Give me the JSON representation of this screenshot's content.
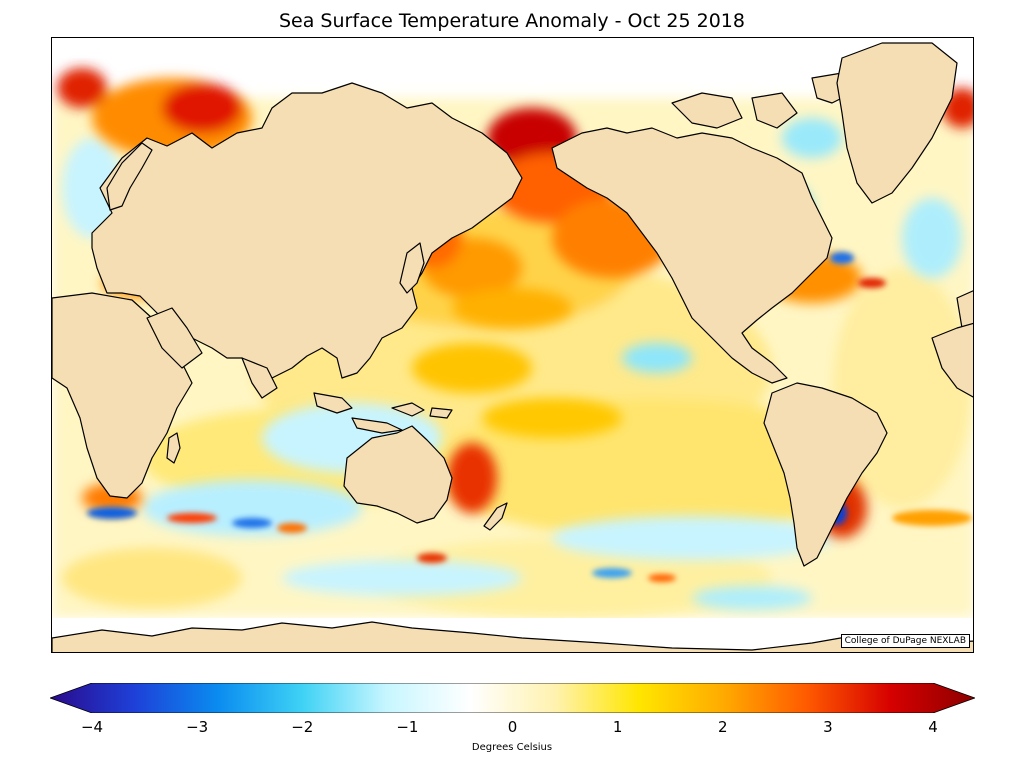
{
  "title": "Sea Surface Temperature Anomaly - Oct 25 2018",
  "credit": "College of DuPage NEXLAB",
  "colorbar": {
    "label": "Degrees Celsius",
    "min": -4,
    "max": 4,
    "ticks": [
      "−4",
      "−3",
      "−2",
      "−1",
      "0",
      "1",
      "2",
      "3",
      "4"
    ],
    "colors": [
      "#2a0a8c",
      "#1e40d8",
      "#0a8cf0",
      "#3fd2f5",
      "#c7f6ff",
      "#ffffff",
      "#fff2b0",
      "#ffe600",
      "#ffab00",
      "#ff5a00",
      "#d60000",
      "#8c0000"
    ]
  },
  "colors": {
    "land": "#f5deb3",
    "ocean_neutral": "#ffffff"
  }
}
